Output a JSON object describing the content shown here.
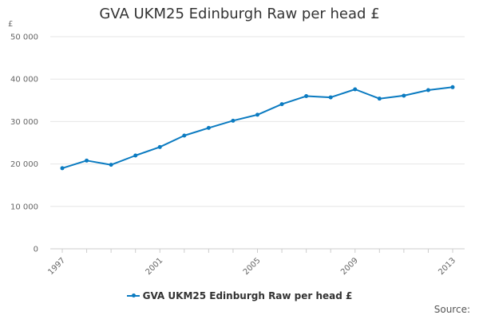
{
  "chart_data": {
    "type": "line",
    "title": "GVA UKM25 Edinburgh Raw per head £",
    "ylabel": "£",
    "xlabel": "",
    "x": [
      1997,
      1998,
      1999,
      2000,
      2001,
      2002,
      2003,
      2004,
      2005,
      2006,
      2007,
      2008,
      2009,
      2010,
      2011,
      2012,
      2013
    ],
    "x_tick_labels": [
      "1997",
      "2001",
      "2005",
      "2009",
      "2013"
    ],
    "y_tick_labels": [
      "0",
      "10 000",
      "20 000",
      "30 000",
      "40 000",
      "50 000"
    ],
    "ylim": [
      0,
      50000
    ],
    "grid": "horizontal",
    "legend_position": "bottom",
    "series": [
      {
        "name": "GVA UKM25 Edinburgh Raw per head £",
        "color": "#0b7bc1",
        "values": [
          19000,
          20800,
          19800,
          22000,
          24000,
          26700,
          28500,
          30200,
          31600,
          34100,
          36000,
          35700,
          37600,
          35400,
          36100,
          37400,
          38100
        ]
      }
    ]
  },
  "credit": "Source:"
}
